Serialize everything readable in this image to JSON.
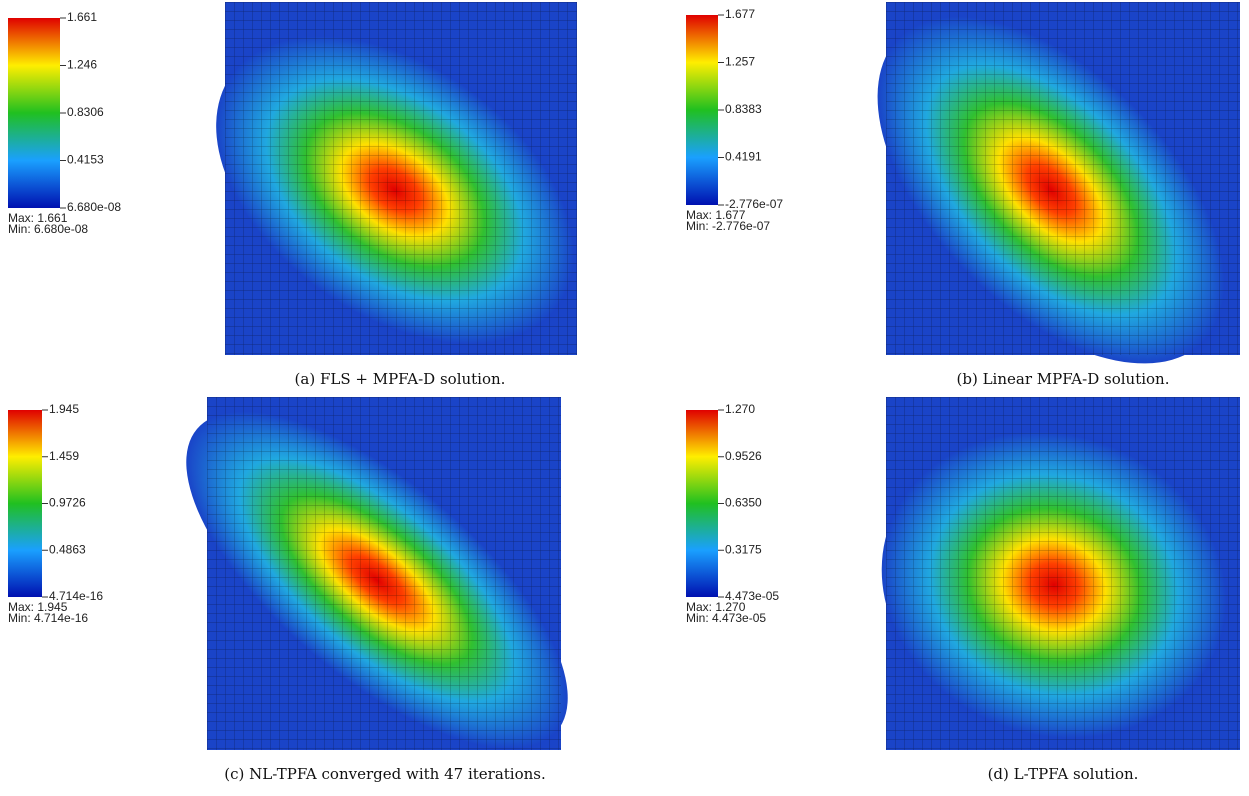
{
  "panels": [
    {
      "colorbar": {
        "ticks": [
          "1.661",
          "1.246",
          "0.8306",
          "0.4153",
          "6.680e-08"
        ],
        "max": "Max: 1.661",
        "min": "Min: 6.680e-08"
      },
      "caption": "(a) FLS + MPFA-D solution."
    },
    {
      "colorbar": {
        "ticks": [
          "1.677",
          "1.257",
          "0.8383",
          "0.4191",
          "-2.776e-07"
        ],
        "max": "Max: 1.677",
        "min": "Min: -2.776e-07"
      },
      "caption": "(b) Linear MPFA-D solution."
    },
    {
      "colorbar": {
        "ticks": [
          "1.945",
          "1.459",
          "0.9726",
          "0.4863",
          "4.714e-16"
        ],
        "max": "Max: 1.945",
        "min": "Min: 4.714e-16"
      },
      "caption": "(c) NL-TPFA converged with 47 iterations."
    },
    {
      "colorbar": {
        "ticks": [
          "1.270",
          "0.9526",
          "0.6350",
          "0.3175",
          "4.473e-05"
        ],
        "max": "Max: 1.270",
        "min": "Min: 4.473e-05"
      },
      "caption": "(d) L-TPFA solution."
    }
  ]
}
